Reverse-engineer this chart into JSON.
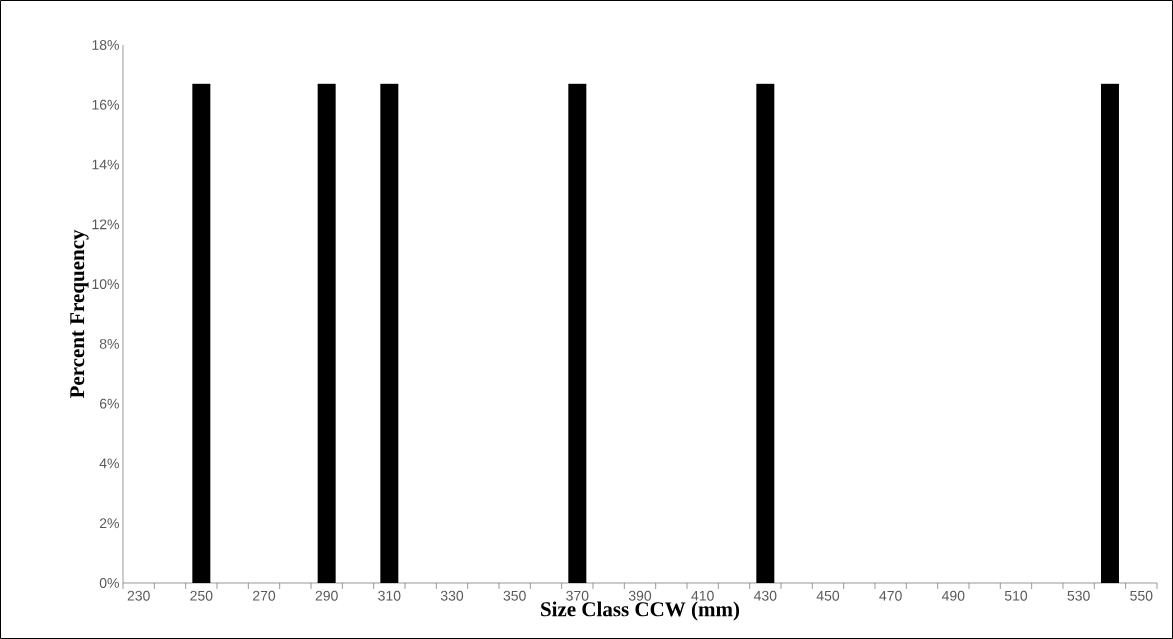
{
  "chart_data": {
    "type": "bar",
    "xlabel": "Size Class CCW (mm)",
    "ylabel": "Percent Frequency",
    "categories": [
      "230",
      null,
      "250",
      null,
      "270",
      null,
      "290",
      null,
      "310",
      null,
      "330",
      null,
      "350",
      null,
      "370",
      null,
      "390",
      null,
      "410",
      null,
      "430",
      null,
      "450",
      null,
      "470",
      null,
      "490",
      null,
      "510",
      null,
      "530",
      null,
      "550"
    ],
    "values": [
      null,
      null,
      16.7,
      null,
      null,
      null,
      16.7,
      null,
      16.7,
      null,
      null,
      null,
      null,
      null,
      16.7,
      null,
      null,
      null,
      null,
      null,
      16.7,
      null,
      null,
      null,
      null,
      null,
      null,
      null,
      null,
      null,
      null,
      16.7,
      null
    ],
    "color": "#000000",
    "ylim": [
      0,
      18
    ],
    "yticks": [
      {
        "value": 0,
        "label": "0%"
      },
      {
        "value": 2,
        "label": "2%"
      },
      {
        "value": 4,
        "label": "4%"
      },
      {
        "value": 6,
        "label": "6%"
      },
      {
        "value": 8,
        "label": "8%"
      },
      {
        "value": 10,
        "label": "10%"
      },
      {
        "value": 12,
        "label": "12%"
      },
      {
        "value": 14,
        "label": "14%"
      },
      {
        "value": 16,
        "label": "16%"
      },
      {
        "value": 18,
        "label": "18%"
      }
    ]
  }
}
